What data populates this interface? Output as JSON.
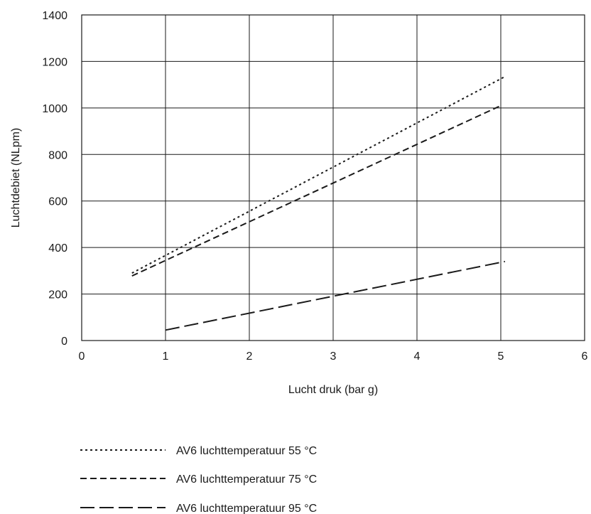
{
  "chart_data": {
    "type": "line",
    "title": "",
    "xlabel": "Lucht druk (bar g)",
    "ylabel": "Luchtdebiet (NLpm)",
    "xlim": [
      0,
      6
    ],
    "ylim": [
      0,
      1400
    ],
    "x_ticks": [
      0,
      1,
      2,
      3,
      4,
      5,
      6
    ],
    "y_ticks": [
      0,
      200,
      400,
      600,
      800,
      1000,
      1200,
      1400
    ],
    "grid": true,
    "legend_position": "bottom",
    "series": [
      {
        "name": "AV6 luchttemperatuur 55 °C",
        "style": "dotted",
        "x": [
          0.6,
          5.05
        ],
        "y": [
          290,
          1135
        ]
      },
      {
        "name": "AV6 luchttemperatuur 75 °C",
        "style": "dashed",
        "x": [
          0.6,
          5.0
        ],
        "y": [
          278,
          1010
        ]
      },
      {
        "name": "AV6 luchttemperatuur 95 °C",
        "style": "long-dashed",
        "x": [
          1.0,
          5.05
        ],
        "y": [
          45,
          340
        ]
      }
    ]
  }
}
